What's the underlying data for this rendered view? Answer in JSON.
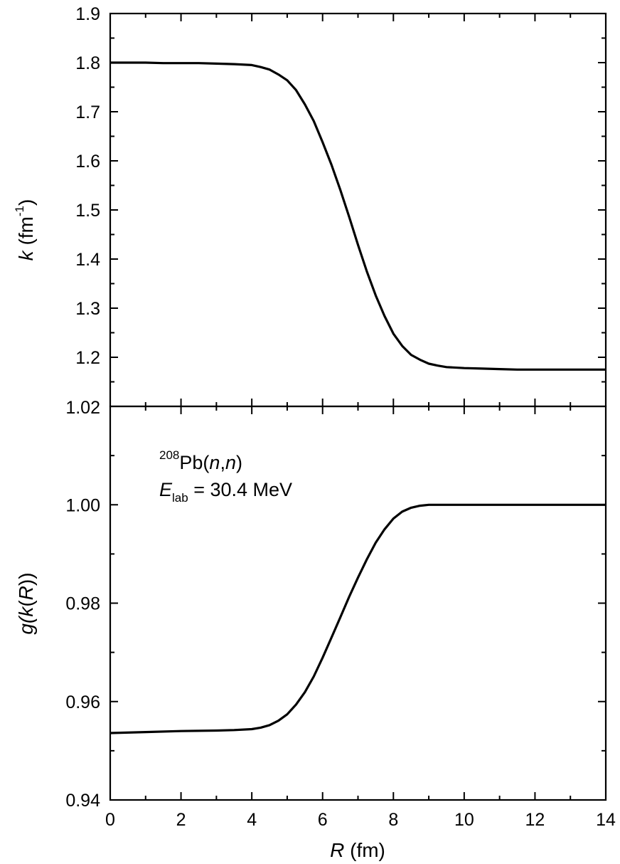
{
  "chart_data": [
    {
      "type": "line",
      "panel": "top",
      "xlim": [
        0,
        14
      ],
      "ylim": [
        1.1,
        1.9
      ],
      "xticks": [
        0,
        2,
        4,
        6,
        8,
        10,
        12,
        14
      ],
      "ytick_labels": [
        "1.2",
        "1.3",
        "1.4",
        "1.5",
        "1.6",
        "1.7",
        "1.8",
        "1.9"
      ],
      "yticks": [
        1.2,
        1.3,
        1.4,
        1.5,
        1.6,
        1.7,
        1.8,
        1.9
      ],
      "ylabel_var": "k",
      "ylabel_unit": " (fm",
      "ylabel_exp": "-1",
      "ylabel_close": ")",
      "shared_boundary_label": "1.02",
      "series": [
        {
          "x": [
            0.0,
            0.5,
            1.0,
            1.5,
            2.0,
            2.5,
            3.0,
            3.5,
            4.0,
            4.25,
            4.5,
            4.75,
            5.0,
            5.25,
            5.5,
            5.75,
            6.0,
            6.25,
            6.5,
            6.75,
            7.0,
            7.25,
            7.5,
            7.75,
            8.0,
            8.25,
            8.5,
            8.75,
            9.0,
            9.25,
            9.5,
            10.0,
            10.5,
            11.0,
            11.5,
            12.0,
            12.5,
            13.0,
            13.5,
            14.0
          ],
          "values": [
            1.8,
            1.8,
            1.8,
            1.799,
            1.799,
            1.799,
            1.798,
            1.797,
            1.795,
            1.791,
            1.786,
            1.776,
            1.764,
            1.744,
            1.715,
            1.681,
            1.638,
            1.592,
            1.541,
            1.486,
            1.429,
            1.375,
            1.326,
            1.284,
            1.248,
            1.223,
            1.205,
            1.195,
            1.187,
            1.183,
            1.18,
            1.178,
            1.177,
            1.176,
            1.175,
            1.175,
            1.175,
            1.175,
            1.175,
            1.175
          ]
        }
      ]
    },
    {
      "type": "line",
      "panel": "bottom",
      "xlim": [
        0,
        14
      ],
      "ylim": [
        0.94,
        1.02
      ],
      "xticks": [
        0,
        2,
        4,
        6,
        8,
        10,
        12,
        14
      ],
      "xtick_labels": [
        "0",
        "2",
        "4",
        "6",
        "8",
        "10",
        "12",
        "14"
      ],
      "yticks": [
        0.94,
        0.96,
        0.98,
        1.0
      ],
      "ytick_labels": [
        "0.94",
        "0.96",
        "0.98",
        "1.00"
      ],
      "ylabel_a": "g(",
      "ylabel_b": "k",
      "ylabel_c": "(",
      "ylabel_d": "R",
      "ylabel_e": "))",
      "xlabel_var": "R",
      "xlabel_unit": " (fm)",
      "annotation": {
        "line1_sup": "208",
        "line1_a": "Pb(",
        "line1_b": "n",
        "line1_c": ",",
        "line1_d": "n",
        "line1_e": ")",
        "line2_var": "E",
        "line2_sub": "lab",
        "line2_rest": " = 30.4 MeV"
      },
      "series": [
        {
          "x": [
            0.0,
            1.0,
            2.0,
            3.0,
            3.5,
            4.0,
            4.25,
            4.5,
            4.75,
            5.0,
            5.25,
            5.5,
            5.75,
            6.0,
            6.25,
            6.5,
            6.75,
            7.0,
            7.25,
            7.5,
            7.75,
            8.0,
            8.25,
            8.5,
            8.75,
            9.0,
            9.5,
            10.0,
            11.0,
            12.0,
            13.0,
            14.0
          ],
          "values": [
            0.9536,
            0.9538,
            0.954,
            0.9541,
            0.9542,
            0.9544,
            0.9547,
            0.9552,
            0.9561,
            0.9574,
            0.9594,
            0.9619,
            0.9651,
            0.9689,
            0.973,
            0.9771,
            0.9813,
            0.9852,
            0.9889,
            0.9923,
            0.995,
            0.9972,
            0.9986,
            0.9994,
            0.9998,
            1.0,
            1.0,
            1.0,
            1.0,
            1.0,
            1.0,
            1.0
          ]
        }
      ]
    }
  ]
}
